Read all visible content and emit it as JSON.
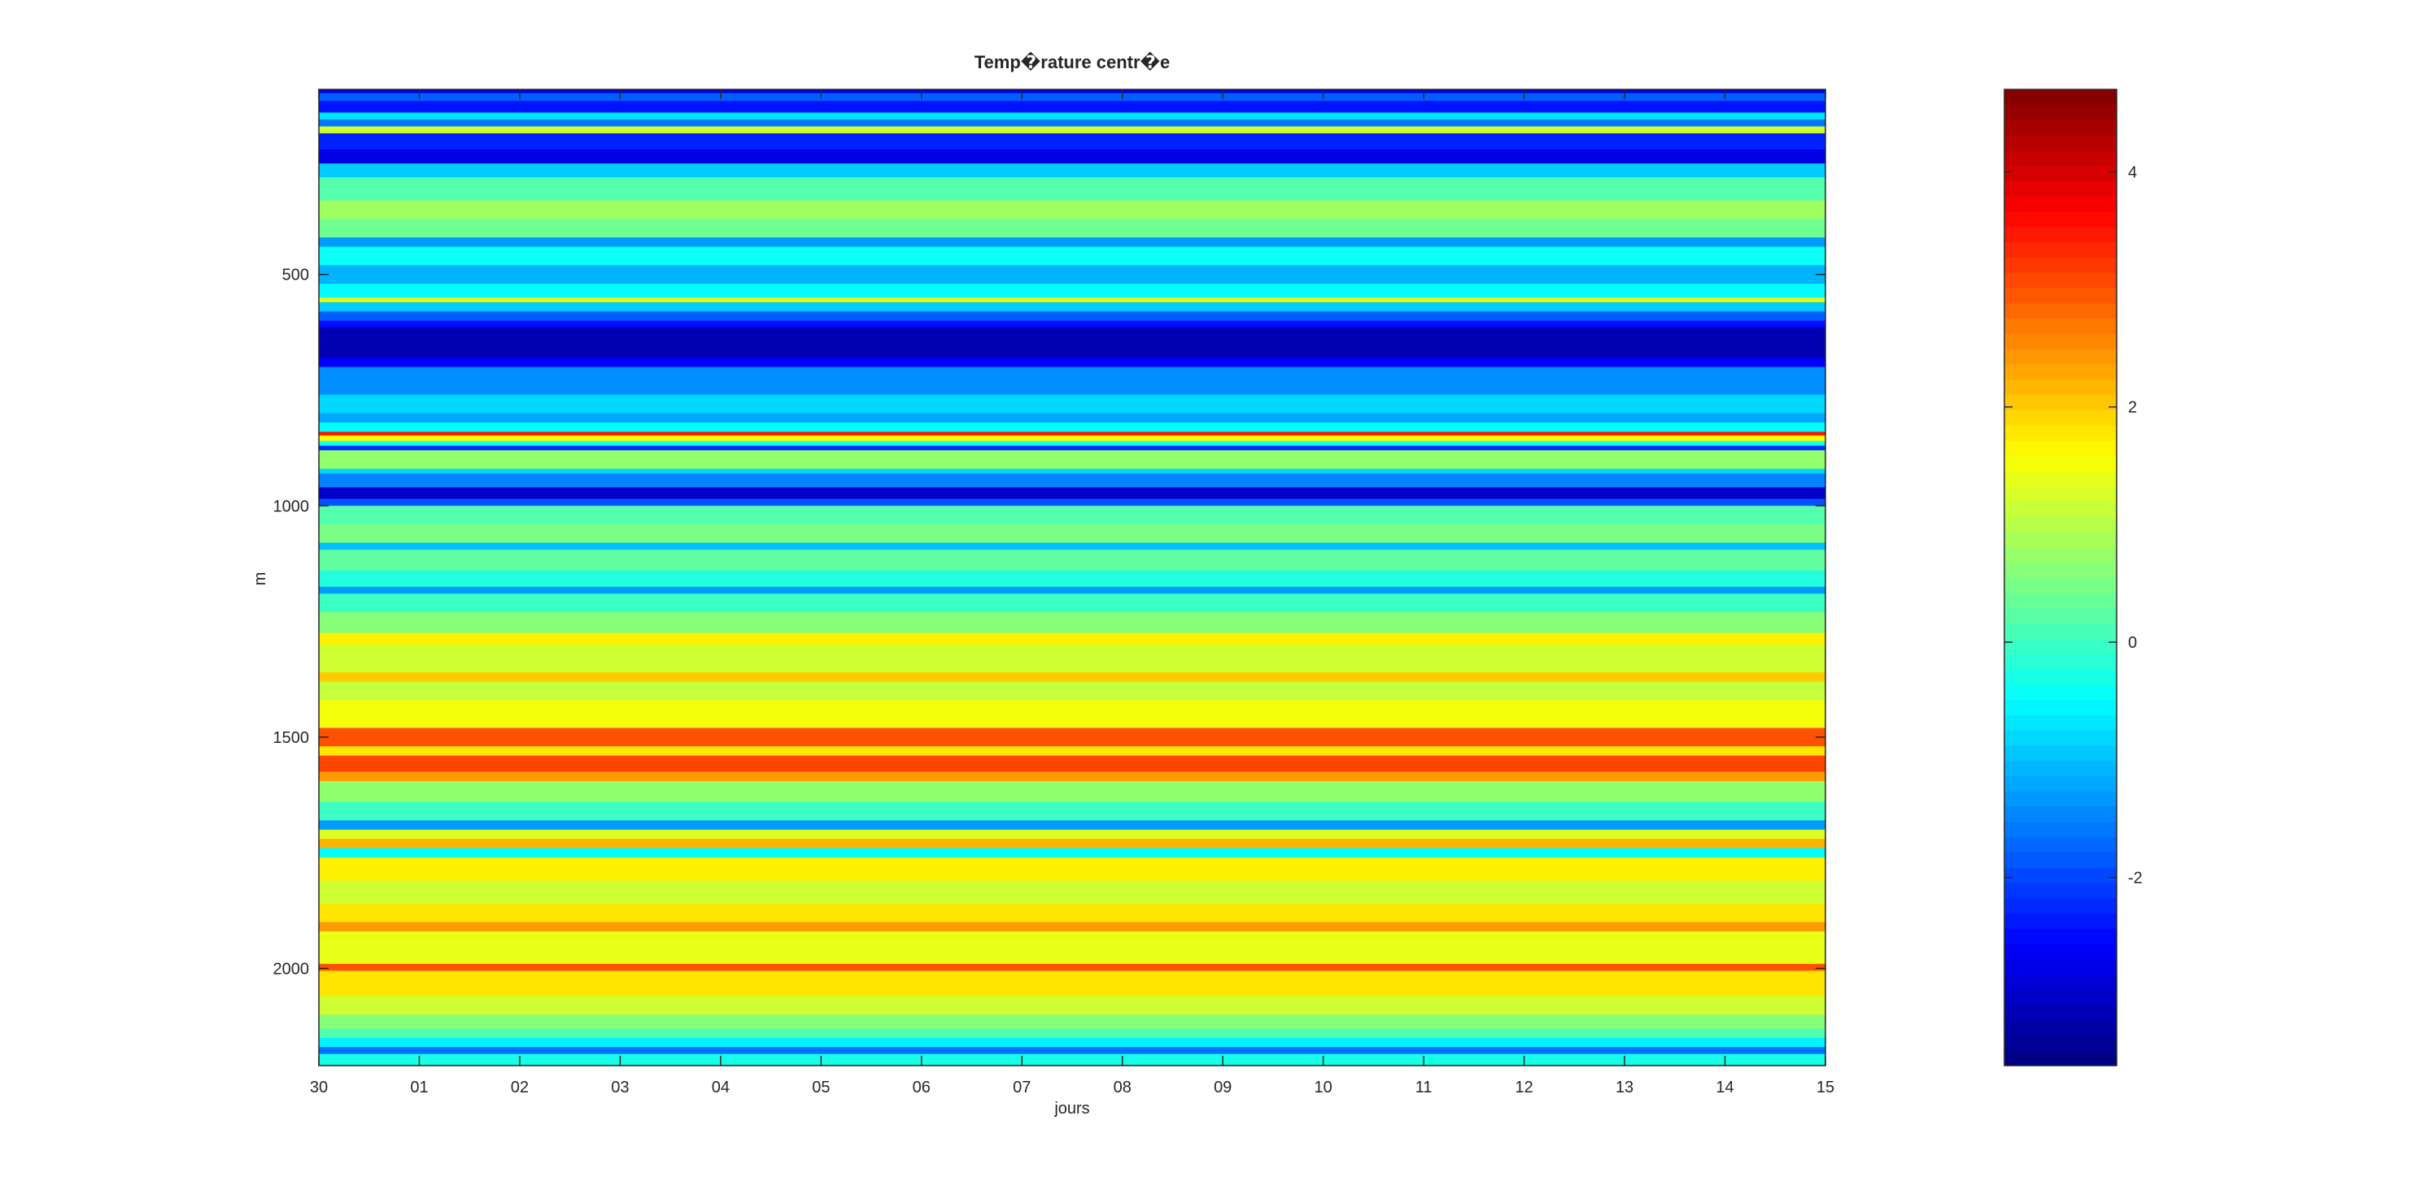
{
  "chart_data": {
    "type": "heatmap",
    "title": "Temp�rature centr�e",
    "xlabel": "jours",
    "ylabel": "m",
    "x_tick_labels": [
      "30",
      "01",
      "02",
      "03",
      "04",
      "05",
      "06",
      "07",
      "08",
      "09",
      "10",
      "11",
      "12",
      "13",
      "14",
      "15"
    ],
    "y_ticks": [
      500,
      1000,
      1500,
      2000
    ],
    "y_tick_labels": [
      "500",
      "1000",
      "1500",
      "2000"
    ],
    "xlim": [
      0,
      15
    ],
    "ylim": [
      100,
      2210
    ],
    "y_reversed": true,
    "colormap": "jet",
    "color_range": [
      -3.6,
      4.7
    ],
    "colorbar_ticks": [
      -2,
      0,
      2,
      4
    ],
    "colorbar_tick_labels": [
      "-2",
      "0",
      "2",
      "4"
    ],
    "bands": [
      {
        "depth": [
          100,
          108
        ],
        "value": -2.8
      },
      {
        "depth": [
          108,
          125
        ],
        "value": -1.8
      },
      {
        "depth": [
          125,
          150
        ],
        "value": -2.4
      },
      {
        "depth": [
          150,
          165
        ],
        "value": -0.7
      },
      {
        "depth": [
          165,
          180
        ],
        "value": -1.6
      },
      {
        "depth": [
          180,
          195
        ],
        "value": 1.2
      },
      {
        "depth": [
          195,
          230
        ],
        "value": -2.3
      },
      {
        "depth": [
          230,
          260
        ],
        "value": -2.8
      },
      {
        "depth": [
          260,
          290
        ],
        "value": -0.9
      },
      {
        "depth": [
          290,
          340
        ],
        "value": 0.2
      },
      {
        "depth": [
          340,
          380
        ],
        "value": 0.8
      },
      {
        "depth": [
          380,
          420
        ],
        "value": 0.4
      },
      {
        "depth": [
          420,
          440
        ],
        "value": -1.3
      },
      {
        "depth": [
          440,
          480
        ],
        "value": -0.4
      },
      {
        "depth": [
          480,
          520
        ],
        "value": -1.1
      },
      {
        "depth": [
          520,
          550
        ],
        "value": -0.5
      },
      {
        "depth": [
          550,
          560
        ],
        "value": 1.4
      },
      {
        "depth": [
          560,
          580
        ],
        "value": -0.9
      },
      {
        "depth": [
          580,
          600
        ],
        "value": -1.8
      },
      {
        "depth": [
          600,
          615
        ],
        "value": -2.5
      },
      {
        "depth": [
          615,
          680
        ],
        "value": -3.2
      },
      {
        "depth": [
          680,
          700
        ],
        "value": -2.6
      },
      {
        "depth": [
          700,
          760
        ],
        "value": -1.4
      },
      {
        "depth": [
          760,
          800
        ],
        "value": -0.8
      },
      {
        "depth": [
          800,
          820
        ],
        "value": -1.2
      },
      {
        "depth": [
          820,
          840
        ],
        "value": -0.5
      },
      {
        "depth": [
          840,
          848
        ],
        "value": 3.5
      },
      {
        "depth": [
          848,
          860
        ],
        "value": 1.6
      },
      {
        "depth": [
          860,
          870
        ],
        "value": -0.3
      },
      {
        "depth": [
          870,
          880
        ],
        "value": -2.2
      },
      {
        "depth": [
          880,
          920
        ],
        "value": 0.7
      },
      {
        "depth": [
          920,
          930
        ],
        "value": -0.8
      },
      {
        "depth": [
          930,
          960
        ],
        "value": -1.5
      },
      {
        "depth": [
          960,
          985
        ],
        "value": -3.0
      },
      {
        "depth": [
          985,
          1000
        ],
        "value": -1.9
      },
      {
        "depth": [
          1000,
          1040
        ],
        "value": 0.2
      },
      {
        "depth": [
          1040,
          1080
        ],
        "value": 0.5
      },
      {
        "depth": [
          1080,
          1095
        ],
        "value": -1.0
      },
      {
        "depth": [
          1095,
          1140
        ],
        "value": 0.3
      },
      {
        "depth": [
          1140,
          1175
        ],
        "value": -0.2
      },
      {
        "depth": [
          1175,
          1190
        ],
        "value": -1.3
      },
      {
        "depth": [
          1190,
          1230
        ],
        "value": 0.0
      },
      {
        "depth": [
          1230,
          1275
        ],
        "value": 0.6
      },
      {
        "depth": [
          1275,
          1300
        ],
        "value": 1.7
      },
      {
        "depth": [
          1300,
          1360
        ],
        "value": 1.2
      },
      {
        "depth": [
          1360,
          1380
        ],
        "value": 2.0
      },
      {
        "depth": [
          1380,
          1420
        ],
        "value": 1.1
      },
      {
        "depth": [
          1420,
          1480
        ],
        "value": 1.5
      },
      {
        "depth": [
          1480,
          1520
        ],
        "value": 3.0
      },
      {
        "depth": [
          1520,
          1540
        ],
        "value": 1.8
      },
      {
        "depth": [
          1540,
          1575
        ],
        "value": 3.1
      },
      {
        "depth": [
          1575,
          1595
        ],
        "value": 2.4
      },
      {
        "depth": [
          1595,
          1640
        ],
        "value": 0.7
      },
      {
        "depth": [
          1640,
          1680
        ],
        "value": 0.0
      },
      {
        "depth": [
          1680,
          1700
        ],
        "value": -1.3
      },
      {
        "depth": [
          1700,
          1720
        ],
        "value": 1.3
      },
      {
        "depth": [
          1720,
          1740
        ],
        "value": 2.2
      },
      {
        "depth": [
          1740,
          1760
        ],
        "value": -0.5
      },
      {
        "depth": [
          1760,
          1810
        ],
        "value": 1.7
      },
      {
        "depth": [
          1810,
          1860
        ],
        "value": 1.2
      },
      {
        "depth": [
          1860,
          1900
        ],
        "value": 1.8
      },
      {
        "depth": [
          1900,
          1920
        ],
        "value": 2.4
      },
      {
        "depth": [
          1920,
          1990
        ],
        "value": 1.4
      },
      {
        "depth": [
          1990,
          2005
        ],
        "value": 3.0
      },
      {
        "depth": [
          2005,
          2060
        ],
        "value": 1.8
      },
      {
        "depth": [
          2060,
          2100
        ],
        "value": 1.2
      },
      {
        "depth": [
          2100,
          2130
        ],
        "value": 0.6
      },
      {
        "depth": [
          2130,
          2150
        ],
        "value": 0.2
      },
      {
        "depth": [
          2150,
          2170
        ],
        "value": -0.6
      },
      {
        "depth": [
          2170,
          2185
        ],
        "value": -1.6
      },
      {
        "depth": [
          2185,
          2210
        ],
        "value": -0.3
      }
    ]
  }
}
